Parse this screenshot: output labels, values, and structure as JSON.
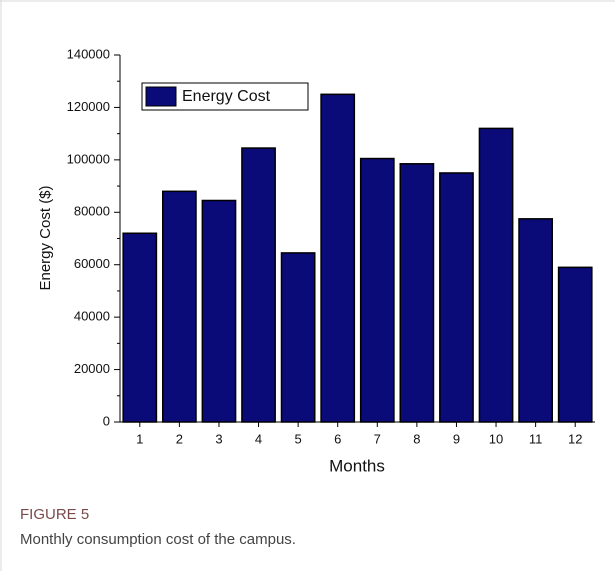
{
  "chart_data": {
    "type": "bar",
    "x_label": "Months",
    "y_label": "Energy Cost ($)",
    "categories": [
      "1",
      "2",
      "3",
      "4",
      "5",
      "6",
      "7",
      "8",
      "9",
      "10",
      "11",
      "12"
    ],
    "series": [
      {
        "name": "Energy Cost",
        "color": "#0a0a78",
        "values": [
          72000,
          88000,
          84500,
          104500,
          64500,
          125000,
          100500,
          98500,
          95000,
          112000,
          77500,
          59000
        ]
      }
    ],
    "ylim": [
      0,
      140000
    ],
    "yticks": [
      0,
      20000,
      40000,
      60000,
      80000,
      100000,
      120000,
      140000
    ],
    "legend": "upper left",
    "grid": false
  },
  "figure": {
    "label": "FIGURE 5",
    "caption": "Monthly consumption cost of the campus."
  }
}
